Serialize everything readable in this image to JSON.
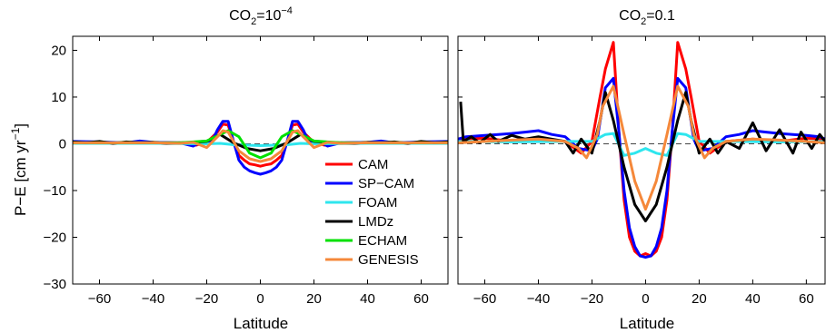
{
  "chart_data": [
    {
      "type": "line",
      "title": {
        "pre": "CO",
        "sub": "2",
        "mid": "=10",
        "sup": "−4"
      },
      "xlabel": "Latitude",
      "ylabel": {
        "main": "P−E [cm yr",
        "sup": "−1",
        "end": "]"
      },
      "xlim": [
        -70,
        70
      ],
      "ylim": [
        -30,
        23
      ],
      "xticks": [
        -60,
        -40,
        -20,
        0,
        20,
        40,
        60
      ],
      "yticks": [
        -30,
        -20,
        -10,
        0,
        10,
        20
      ],
      "legend_position": "lower-right",
      "reference_line": 0,
      "series": [
        {
          "name": "CAM",
          "color": "#ff0000",
          "x": [
            -70,
            -60,
            -50,
            -40,
            -30,
            -24,
            -20,
            -16,
            -14,
            -12,
            -10,
            -8,
            -6,
            -4,
            -2,
            0,
            2,
            4,
            6,
            8,
            10,
            12,
            14,
            16,
            20,
            24,
            30,
            40,
            50,
            60,
            70
          ],
          "y": [
            0.3,
            0.3,
            0.2,
            0.3,
            0.2,
            -0.3,
            0.3,
            2.5,
            4.2,
            4.0,
            0.5,
            -2.5,
            -3.5,
            -4.3,
            -4.5,
            -4.8,
            -4.5,
            -4.3,
            -3.5,
            -2.5,
            0.5,
            4.0,
            4.2,
            2.5,
            0.3,
            -0.3,
            0.2,
            0.3,
            0.2,
            0.3,
            0.3
          ]
        },
        {
          "name": "SP−CAM",
          "color": "#0000ff",
          "x": [
            -70,
            -60,
            -50,
            -45,
            -40,
            -30,
            -25,
            -22,
            -18,
            -16,
            -14,
            -12,
            -10,
            -8,
            -6,
            -4,
            -2,
            0,
            2,
            4,
            6,
            8,
            10,
            12,
            14,
            16,
            18,
            22,
            25,
            30,
            40,
            45,
            50,
            60,
            70
          ],
          "y": [
            0.5,
            0.4,
            0.2,
            0.6,
            0.3,
            0.2,
            -0.5,
            0.5,
            0.5,
            3.0,
            4.8,
            4.8,
            0.5,
            -3.5,
            -5.0,
            -5.8,
            -6.2,
            -6.5,
            -6.2,
            -5.8,
            -5.0,
            -3.5,
            0.5,
            4.8,
            4.8,
            3.0,
            0.5,
            0.5,
            -0.5,
            0.2,
            0.3,
            0.6,
            0.2,
            0.4,
            0.5
          ]
        },
        {
          "name": "FOAM",
          "color": "#2ee6ee",
          "x": [
            -70,
            -40,
            -20,
            -15,
            -10,
            -5,
            0,
            5,
            10,
            15,
            20,
            40,
            70
          ],
          "y": [
            0.1,
            0.1,
            0.0,
            0.1,
            -0.2,
            -0.3,
            -0.4,
            -0.3,
            -0.2,
            0.1,
            0.0,
            0.1,
            0.1
          ]
        },
        {
          "name": "LMDz",
          "color": "#000000",
          "x": [
            -70,
            -65,
            -60,
            -55,
            -50,
            -45,
            -40,
            -35,
            -30,
            -25,
            -20,
            -15,
            -10,
            -5,
            0,
            5,
            10,
            15,
            20,
            25,
            30,
            35,
            40,
            45,
            50,
            55,
            60,
            65,
            70
          ],
          "y": [
            0.4,
            0.2,
            0.5,
            0.1,
            0.4,
            0.2,
            0.3,
            0.1,
            0.2,
            0.3,
            0.5,
            2.0,
            0.2,
            -1.0,
            -1.5,
            -1.0,
            0.2,
            2.0,
            0.5,
            0.3,
            0.2,
            0.1,
            0.3,
            0.2,
            0.4,
            0.1,
            0.5,
            0.2,
            0.4
          ]
        },
        {
          "name": "ECHAM",
          "color": "#00e000",
          "x": [
            -70,
            -50,
            -30,
            -20,
            -15,
            -12,
            -8,
            -4,
            0,
            4,
            8,
            12,
            15,
            20,
            30,
            50,
            70
          ],
          "y": [
            0.2,
            0.2,
            0.2,
            0.6,
            2.0,
            2.8,
            1.5,
            -2.0,
            -3.0,
            -2.0,
            1.5,
            2.8,
            2.0,
            0.6,
            0.2,
            0.2,
            0.2
          ]
        },
        {
          "name": "GENESIS",
          "color": "#f5883a",
          "x": [
            -70,
            -60,
            -40,
            -30,
            -25,
            -20,
            -16,
            -14,
            -12,
            -8,
            -4,
            0,
            4,
            8,
            12,
            14,
            16,
            20,
            25,
            30,
            40,
            60,
            70
          ],
          "y": [
            0.2,
            0.2,
            0.2,
            0.1,
            0.3,
            -0.8,
            1.5,
            2.8,
            2.5,
            -1.5,
            -3.2,
            -3.8,
            -3.2,
            -1.5,
            2.5,
            2.8,
            1.5,
            -0.8,
            0.3,
            0.1,
            0.2,
            0.2,
            0.2
          ]
        }
      ]
    },
    {
      "type": "line",
      "title": {
        "pre": "CO",
        "sub": "2",
        "mid": "=0.1",
        "sup": ""
      },
      "xlabel": "Latitude",
      "xlim": [
        -70,
        67
      ],
      "ylim": [
        -30,
        23
      ],
      "xticks": [
        -60,
        -40,
        -20,
        0,
        20,
        40,
        60
      ],
      "yticks": [
        -30,
        -20,
        -10,
        0,
        10,
        20
      ],
      "reference_line": 0,
      "series": [
        {
          "name": "CAM",
          "color": "#ff0000",
          "x": [
            -70,
            -60,
            -50,
            -40,
            -30,
            -24,
            -20,
            -17,
            -15,
            -12,
            -10,
            -8,
            -6,
            -4,
            -2,
            0,
            2,
            4,
            6,
            8,
            10,
            12,
            15,
            17,
            20,
            24,
            30,
            40,
            50,
            60,
            67
          ],
          "y": [
            1.0,
            1.2,
            0.5,
            1.0,
            0.5,
            -2.0,
            0.5,
            10,
            16,
            21.7,
            3,
            -12,
            -20,
            -23,
            -24,
            -23.5,
            -24,
            -23,
            -20,
            -12,
            3,
            21.7,
            16,
            10,
            0.5,
            -2.0,
            0.5,
            1.0,
            0.5,
            1.2,
            1.0
          ]
        },
        {
          "name": "SP−CAM",
          "color": "#0000ff",
          "x": [
            -70,
            -67,
            -60,
            -55,
            -50,
            -45,
            -40,
            -35,
            -30,
            -25,
            -20,
            -18,
            -15,
            -12,
            -10,
            -8,
            -6,
            -4,
            -2,
            0,
            2,
            4,
            6,
            8,
            10,
            12,
            15,
            18,
            20,
            25,
            30,
            35,
            40,
            45,
            50,
            55,
            60,
            65,
            67
          ],
          "y": [
            1.0,
            1.5,
            1.8,
            2.0,
            2.2,
            2.5,
            2.8,
            2.0,
            1.5,
            -1.0,
            -1.5,
            1.0,
            12,
            14,
            3,
            -10,
            -18,
            -22,
            -24,
            -24.3,
            -24,
            -22,
            -18,
            -10,
            3,
            14,
            12,
            1.0,
            -1.5,
            -1.0,
            1.5,
            2.0,
            2.8,
            2.5,
            2.2,
            2.0,
            1.8,
            1.5,
            1.0
          ]
        },
        {
          "name": "FOAM",
          "color": "#2ee6ee",
          "x": [
            -70,
            -50,
            -30,
            -20,
            -15,
            -12,
            -8,
            -4,
            0,
            4,
            8,
            12,
            15,
            20,
            30,
            50,
            67
          ],
          "y": [
            0.5,
            0.4,
            0.5,
            0.5,
            2.0,
            2.2,
            -2.5,
            -2.0,
            -1.0,
            -2.0,
            -2.5,
            2.2,
            2.0,
            0.5,
            0.5,
            0.4,
            0.5
          ]
        },
        {
          "name": "LMDz",
          "color": "#000000",
          "x": [
            -69,
            -68,
            -65,
            -62,
            -58,
            -55,
            -50,
            -45,
            -40,
            -35,
            -30,
            -27,
            -24,
            -20,
            -17,
            -15,
            -12,
            -8,
            -4,
            0,
            4,
            8,
            12,
            15,
            17,
            20,
            24,
            27,
            30,
            35,
            40,
            45,
            50,
            55,
            58,
            62,
            65,
            67
          ],
          "y": [
            9.0,
            0.5,
            1.5,
            0.2,
            2.0,
            0.5,
            1.8,
            1.0,
            1.5,
            1.0,
            0.5,
            -2.0,
            1.0,
            -2.0,
            5.0,
            11.0,
            5.0,
            -5.0,
            -13.0,
            -16.5,
            -13.0,
            -5.0,
            5.0,
            11.0,
            5.0,
            -2.0,
            1.0,
            -2.0,
            0.5,
            -1.0,
            4.5,
            -1.5,
            3.0,
            -2.0,
            2.5,
            -1.0,
            2.0,
            0.5
          ]
        },
        {
          "name": "GENESIS",
          "color": "#f5883a",
          "x": [
            -70,
            -60,
            -50,
            -40,
            -30,
            -25,
            -22,
            -18,
            -16,
            -12,
            -8,
            -4,
            0,
            4,
            8,
            12,
            16,
            18,
            22,
            25,
            30,
            40,
            50,
            60,
            67
          ],
          "y": [
            0.2,
            0.5,
            0.8,
            1.0,
            0.5,
            -1.0,
            -3.0,
            2.0,
            8.0,
            12.3,
            2.0,
            -8.0,
            -14.0,
            -8.0,
            2.0,
            12.3,
            8.0,
            2.0,
            -3.0,
            -1.0,
            0.5,
            1.0,
            0.8,
            0.5,
            0.2
          ]
        }
      ]
    }
  ]
}
